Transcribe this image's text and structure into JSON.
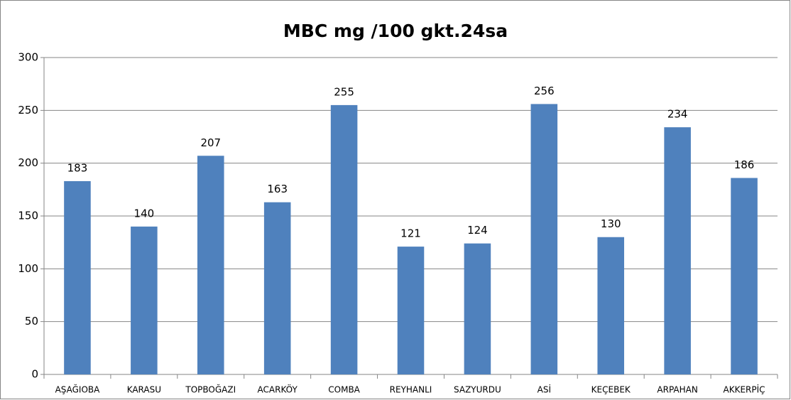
{
  "chart_data": {
    "type": "bar",
    "title": "MBC mg /100 gkt.24sa",
    "categories": [
      "AŞAĞIOBA",
      "KARASU",
      "TOPBOĞAZI",
      "ACARKÖY",
      "COMBA",
      "REYHANLI",
      "SAZYURDU",
      "ASİ",
      "KEÇEBEK",
      "ARPAHAN",
      "AKKERPİÇ"
    ],
    "values": [
      183,
      140,
      207,
      163,
      255,
      121,
      124,
      256,
      130,
      234,
      186
    ],
    "color": "#4f81bd",
    "ylim": [
      0,
      300
    ],
    "yticks": [
      0,
      50,
      100,
      150,
      200,
      250,
      300
    ],
    "grid": true
  }
}
